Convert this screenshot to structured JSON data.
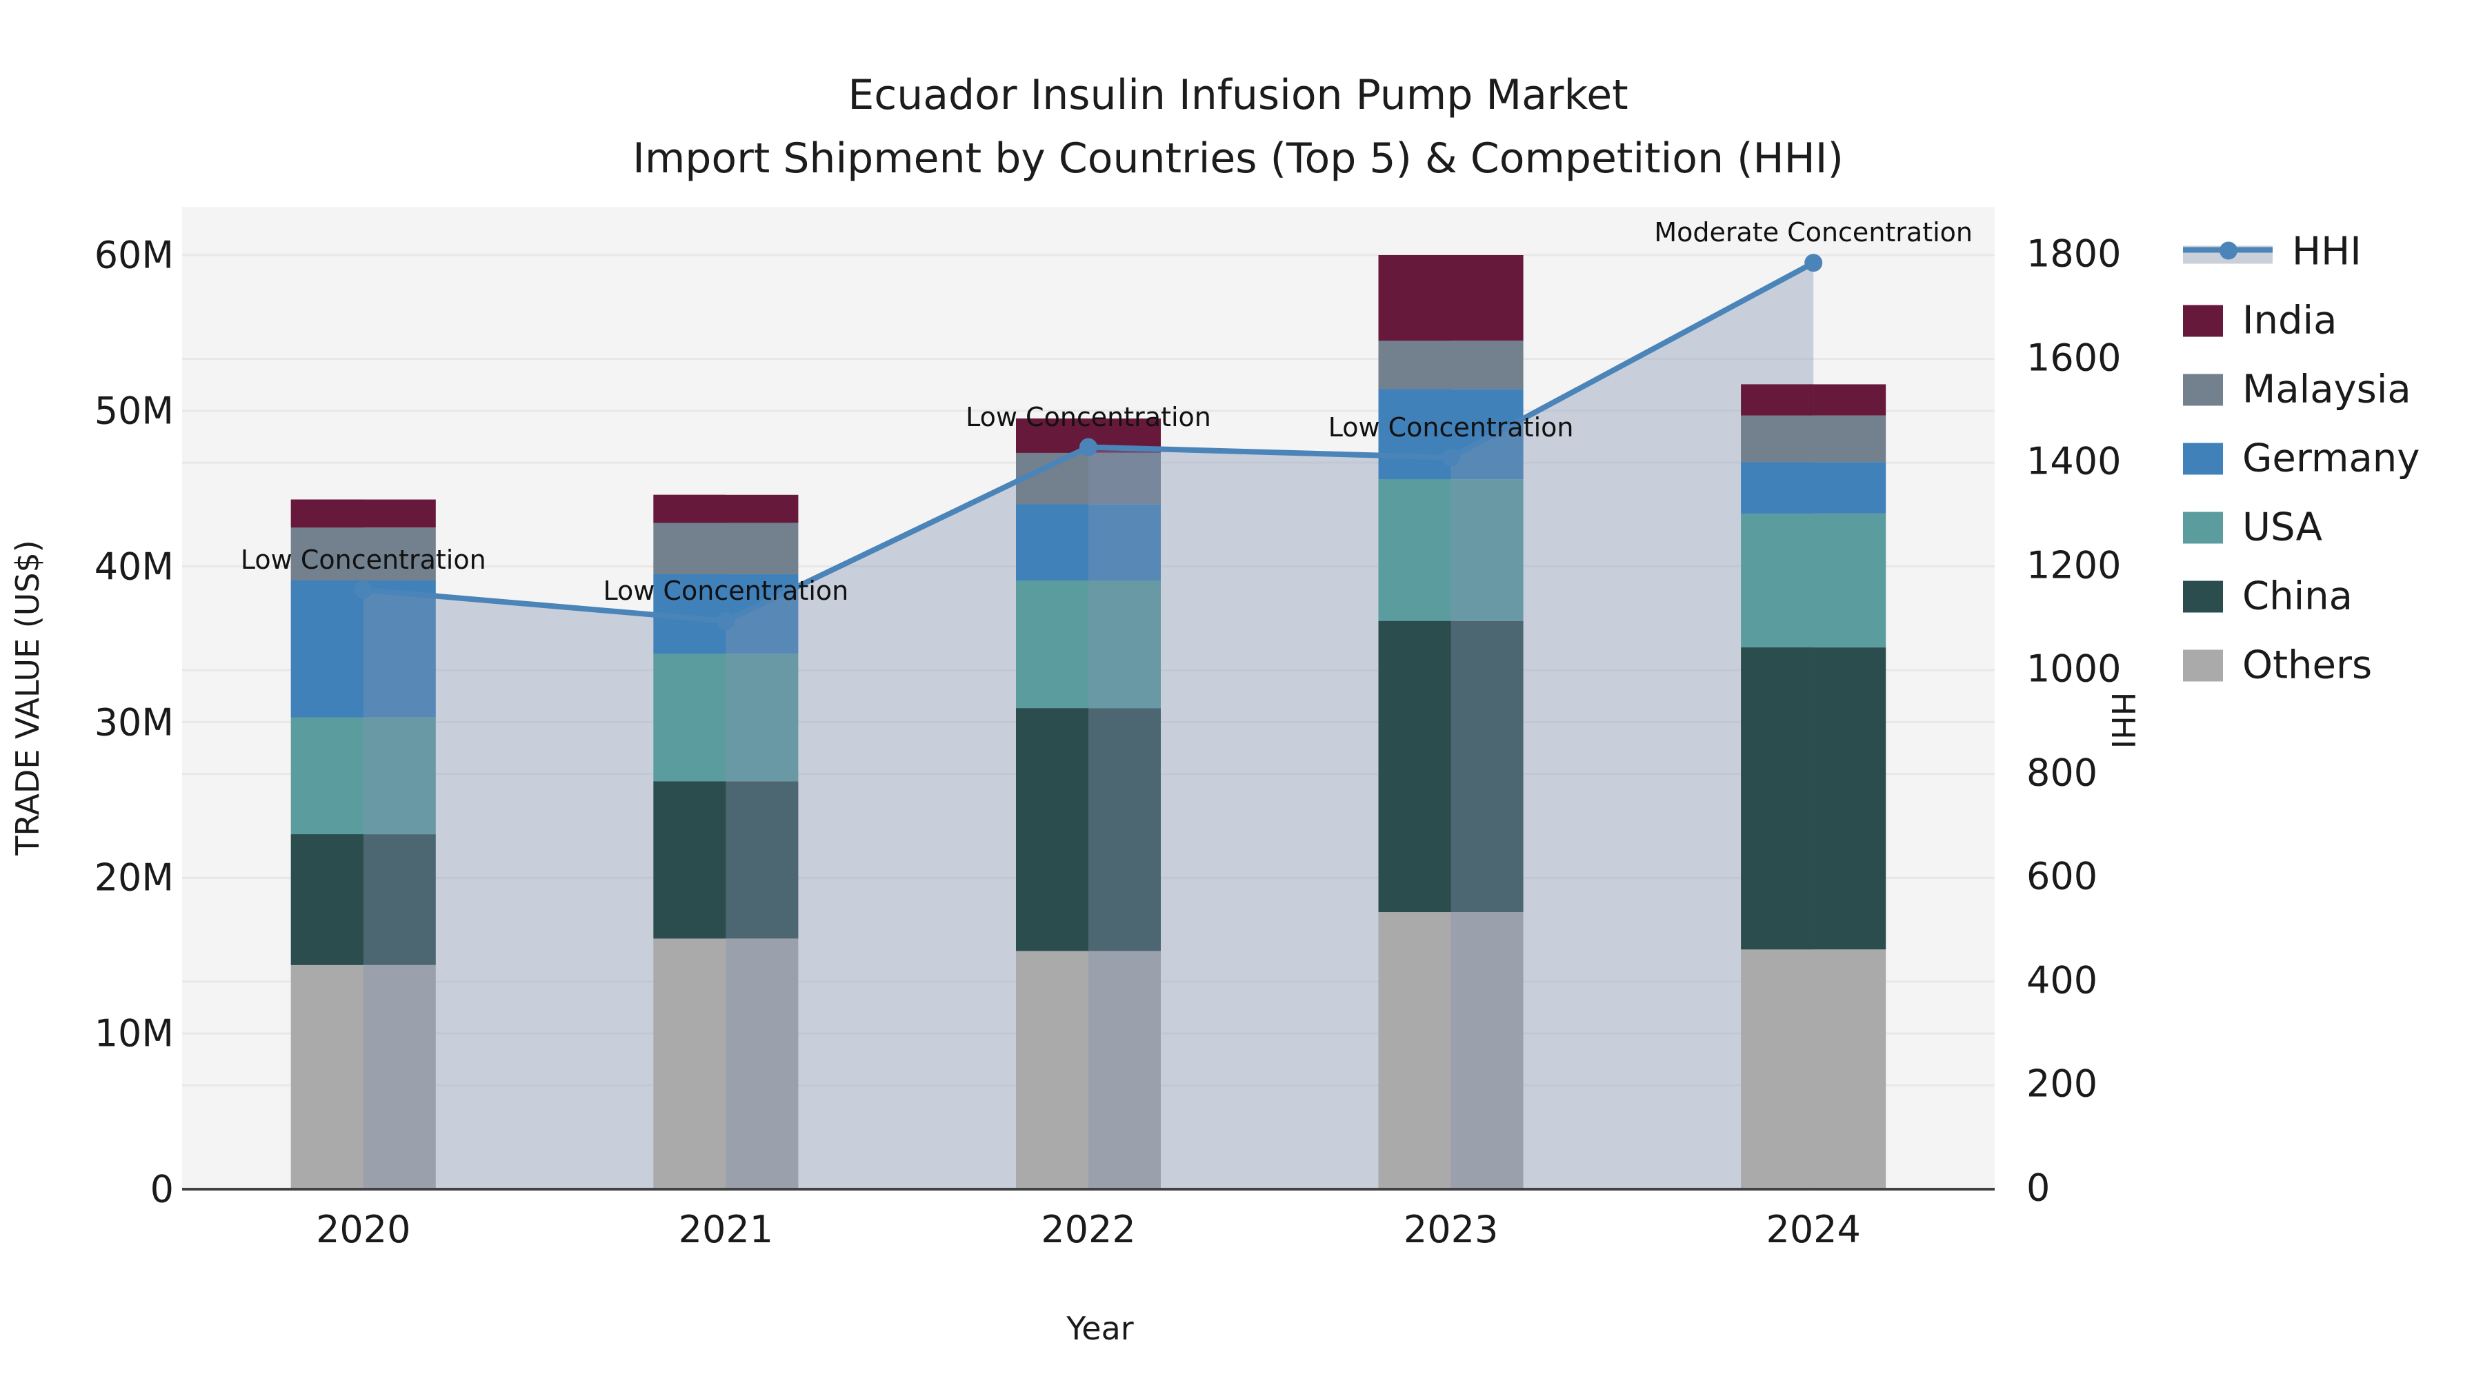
{
  "title": {
    "line1": "Ecuador Insulin Infusion Pump Market",
    "line2": "Import Shipment by Countries (Top 5) & Competition (HHI)"
  },
  "x_axis": {
    "label": "Year"
  },
  "y_left": {
    "label": "TRADE VALUE (US$)",
    "ticks": [
      "0",
      "10M",
      "20M",
      "30M",
      "40M",
      "50M",
      "60M"
    ],
    "max": 60
  },
  "y_right": {
    "label": "HHI",
    "ticks": [
      "0",
      "200",
      "400",
      "600",
      "800",
      "1000",
      "1200",
      "1400",
      "1600",
      "1800"
    ],
    "max": 1800
  },
  "legend": [
    {
      "label": "HHI",
      "swatch": "line"
    },
    {
      "label": "India",
      "swatch": "India"
    },
    {
      "label": "Malaysia",
      "swatch": "Malaysia"
    },
    {
      "label": "Germany",
      "swatch": "Germany"
    },
    {
      "label": "USA",
      "swatch": "USA"
    },
    {
      "label": "China",
      "swatch": "China"
    },
    {
      "label": "Others",
      "swatch": "Others"
    }
  ],
  "annotations": [
    {
      "x_year": "2020",
      "label": "Low Concentration"
    },
    {
      "x_year": "2021",
      "label": "Low Concentration"
    },
    {
      "x_year": "2022",
      "label": "Low Concentration"
    },
    {
      "x_year": "2023",
      "label": "Low Concentration"
    },
    {
      "x_year": "2024",
      "label": "Moderate Concentration"
    }
  ],
  "colors": {
    "background": "#ffffff",
    "plot_background": "#f4f4f4",
    "grid": "#e8e8e8",
    "axis_line": "#424242",
    "text": "#1a1a1a",
    "hhi_line": "#4a84b8",
    "area_fill": "rgba(128,146,176,0.38)",
    "legend_band": "#c9d0da"
  },
  "chart_data": {
    "type": [
      "bar-stacked",
      "line"
    ],
    "title": "Ecuador Insulin Infusion Pump Market — Import Shipment by Countries (Top 5) & Competition (HHI)",
    "categories": [
      "2020",
      "2021",
      "2022",
      "2023",
      "2024"
    ],
    "xlabel": "Year",
    "ylabel_left": "TRADE VALUE (US$)",
    "ylabel_right": "HHI",
    "ylim_left": [
      0,
      60
    ],
    "ylim_right": [
      0,
      1800
    ],
    "units": "millions US$",
    "grid": true,
    "legend_position": "right",
    "series": [
      {
        "name": "Others",
        "values": [
          14.4,
          16.1,
          15.3,
          17.8,
          15.4
        ],
        "color": "#aaaaaa"
      },
      {
        "name": "China",
        "values": [
          8.4,
          10.1,
          15.6,
          18.7,
          19.4
        ],
        "color": "#2c4d4d"
      },
      {
        "name": "USA",
        "values": [
          7.5,
          8.2,
          8.2,
          9.1,
          8.6
        ],
        "color": "#5b9d9f"
      },
      {
        "name": "Germany",
        "values": [
          8.8,
          5.1,
          4.9,
          5.8,
          3.3
        ],
        "color": "#4081ba"
      },
      {
        "name": "Malaysia",
        "values": [
          3.4,
          3.3,
          3.3,
          3.1,
          3.0
        ],
        "color": "#73808e"
      },
      {
        "name": "India",
        "values": [
          1.8,
          1.8,
          2.2,
          5.5,
          2.0
        ],
        "color": "#67193c"
      }
    ],
    "bar_totals": [
      44.3,
      44.6,
      49.5,
      60.0,
      51.7
    ],
    "hhi": {
      "name": "HHI",
      "values": [
        1155,
        1095,
        1430,
        1410,
        1785
      ]
    }
  }
}
